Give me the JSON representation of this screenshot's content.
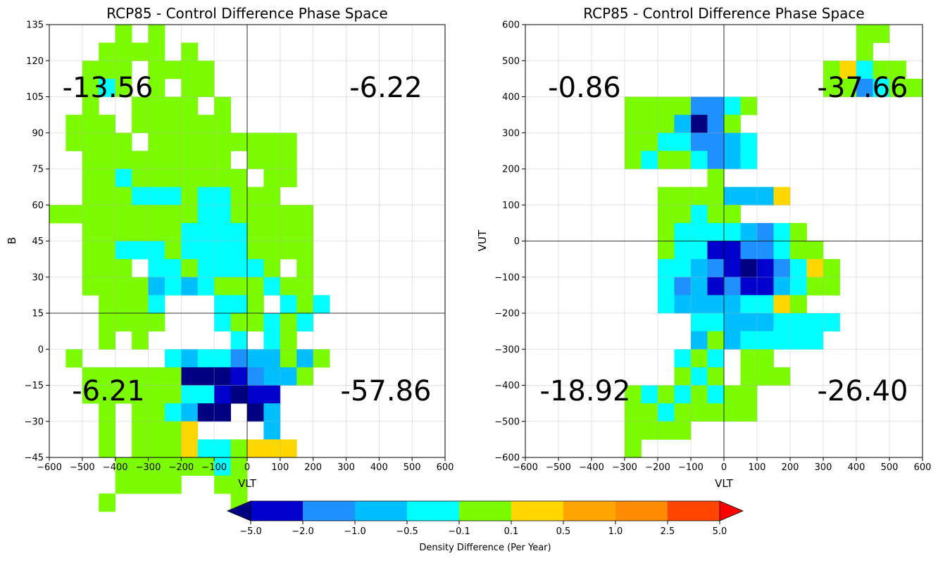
{
  "chart_data": [
    {
      "type": "heatmap",
      "title": "RCP85 - Control Difference Phase Space",
      "xlabel": "VLT",
      "ylabel": "B",
      "xlim": [
        -600,
        600
      ],
      "ylim": [
        -45,
        135
      ],
      "xticks": [
        -600,
        -500,
        -400,
        -300,
        -200,
        -100,
        0,
        100,
        200,
        300,
        400,
        500,
        600
      ],
      "yticks": [
        -45,
        -30,
        -15,
        0,
        15,
        30,
        45,
        60,
        75,
        90,
        105,
        120,
        135
      ],
      "x_divider": 0,
      "y_divider": 15,
      "grid": true,
      "cell_size": [
        50,
        7.5
      ],
      "quadrant_values": {
        "upper_left": "-13.56",
        "upper_right": "-6.22",
        "lower_left": "-6.21",
        "lower_right": "-57.86"
      },
      "cells_by_row_top_down": [
        "....G.G.........",
        "...GGGG.G.......",
        "..GGG.GGGG......",
        "..GCG.G.GG......",
        "..G..GGGG.G.....",
        ".GGG.GGGGGG.....",
        ".GGGG.GGGGGGGGG.",
        "..GGGGGGGGG.GGG.",
        "..GGCGGGGGGG.GG.",
        "..GGGCCCGCCGGG..",
        "GGGGGGGGGCCGGGGG",
        "..GGGGGGCCCCGGGG",
        "..GGCCCGCCCCGGGG",
        "..GGG.CCGCCCCG.G",
        "..GGGGSCSCGGGCGG",
        "...GGGCBBBCCG.CGC",
        "...GGGGBBBCGGCGC",
        "...G.GBBBBBCOCG",
        ".G.....CSCCDSSGSG",
        "..GGGGGGNNNRDSSG",
        "..GGGGGGCCRNRR",
        "...G.GGCSNNBNS",
        "...G.GGGYBBBBS",
        "...G.GGGYCCGYYY",
        "....GGGGGGCG",
        "....GGGG..GG",
        "...G.......G"
      ]
    },
    {
      "type": "heatmap",
      "title": "RCP85 - Control Difference Phase Space",
      "xlabel": "VLT",
      "ylabel": "VUT",
      "xlim": [
        -600,
        600
      ],
      "ylim": [
        -600,
        600
      ],
      "xticks": [
        -600,
        -500,
        -400,
        -300,
        -200,
        -100,
        0,
        100,
        200,
        300,
        400,
        500,
        600
      ],
      "yticks": [
        -600,
        -500,
        -400,
        -300,
        -200,
        -100,
        0,
        100,
        200,
        300,
        400,
        500,
        600
      ],
      "x_divider": 0,
      "y_divider": 0,
      "grid": true,
      "cell_size": [
        50,
        50
      ],
      "quadrant_values": {
        "upper_left": "-0.86",
        "upper_right": "-37.66",
        "lower_left": "-18.92",
        "lower_right": "-26.40"
      }
    }
  ],
  "colorbar": {
    "label": "Density Difference (Per Year)",
    "bounds": [
      "-5.0",
      "-2.0",
      "-1.0",
      "-0.5",
      "-0.1",
      "0.1",
      "0.5",
      "1.0",
      "2.5",
      "5.0"
    ],
    "colors": [
      "#0000cd",
      "#1e90ff",
      "#00bfff",
      "#00ffff",
      "#7cfc00",
      "#ffd700",
      "#ffa500",
      "#ff8c00",
      "#ff4500"
    ],
    "under_color": "#000080",
    "over_color": "#ff0000"
  },
  "palette": {
    "N": "#000080",
    "R": "#0000cd",
    "D": "#1e90ff",
    "S": "#00bfff",
    "C": "#00ffff",
    "G": "#7cfc00",
    "Y": "#ffd700"
  }
}
